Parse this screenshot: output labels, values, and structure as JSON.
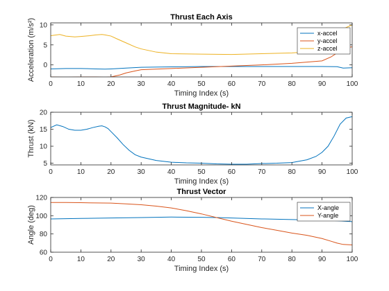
{
  "chart_data": [
    {
      "type": "line",
      "title": "Thrust Each Axis",
      "xlabel": "Timing Index (s)",
      "ylabel": "Acceleration (m/s²)",
      "xlim": [
        0,
        100
      ],
      "ylim": [
        -3,
        10.5
      ],
      "xticks": [
        0,
        10,
        20,
        30,
        40,
        50,
        60,
        70,
        80,
        90,
        100
      ],
      "yticks": [
        -5,
        0,
        5,
        10
      ],
      "legend": "top-right",
      "grid": false,
      "series": [
        {
          "name": "x-accel",
          "color": "#0072BD",
          "x": [
            0,
            5,
            10,
            15,
            18,
            20,
            25,
            30,
            40,
            50,
            60,
            70,
            80,
            90,
            95,
            97,
            100
          ],
          "y": [
            -1.0,
            -0.9,
            -0.9,
            -1.0,
            -1.05,
            -1.0,
            -0.8,
            -0.6,
            -0.5,
            -0.4,
            -0.4,
            -0.4,
            -0.4,
            -0.4,
            -0.45,
            -0.8,
            -0.7
          ]
        },
        {
          "name": "y-accel",
          "color": "#D95319",
          "x": [
            0,
            5,
            10,
            15,
            18,
            20,
            23,
            25,
            28,
            30,
            40,
            50,
            60,
            70,
            80,
            85,
            90,
            93,
            95,
            97,
            100
          ],
          "y": [
            -3.0,
            -3.1,
            -3.0,
            -3.0,
            -3.1,
            -3.0,
            -2.5,
            -2.0,
            -1.5,
            -1.2,
            -0.9,
            -0.6,
            -0.3,
            0.0,
            0.4,
            0.7,
            1.0,
            2.0,
            3.0,
            4.2,
            4.5
          ]
        },
        {
          "name": "z-accel",
          "color": "#EDB120",
          "x": [
            0,
            3,
            5,
            8,
            10,
            13,
            15,
            17,
            18,
            20,
            22,
            25,
            28,
            30,
            35,
            40,
            50,
            60,
            70,
            80,
            90,
            93,
            95,
            97,
            100
          ],
          "y": [
            7.3,
            7.6,
            7.2,
            7.0,
            7.1,
            7.3,
            7.5,
            7.6,
            7.5,
            7.2,
            6.5,
            5.5,
            4.5,
            4.0,
            3.2,
            2.8,
            2.7,
            2.6,
            2.8,
            3.0,
            3.5,
            4.5,
            6.0,
            9.0,
            10.0
          ]
        }
      ]
    },
    {
      "type": "line",
      "title": "Thrust Magnitude- kN",
      "xlabel": "Timing Index (s)",
      "ylabel": "Thrust (kN)",
      "xlim": [
        0,
        100
      ],
      "ylim": [
        4.5,
        20
      ],
      "xticks": [
        0,
        10,
        20,
        30,
        40,
        50,
        60,
        70,
        80,
        90,
        100
      ],
      "yticks": [
        5,
        10,
        15,
        20
      ],
      "grid": false,
      "series": [
        {
          "name": "",
          "color": "#0072BD",
          "x": [
            0,
            2,
            4,
            6,
            8,
            10,
            12,
            14,
            16,
            17,
            18,
            19,
            20,
            22,
            24,
            26,
            28,
            30,
            35,
            40,
            45,
            50,
            55,
            60,
            65,
            70,
            75,
            80,
            85,
            88,
            90,
            92,
            94,
            96,
            98,
            100
          ],
          "y": [
            15.5,
            16.3,
            15.8,
            15.0,
            14.7,
            14.7,
            15.0,
            15.5,
            15.9,
            16.0,
            15.7,
            15.2,
            14.3,
            12.5,
            10.5,
            8.8,
            7.5,
            6.8,
            5.8,
            5.3,
            5.1,
            5.0,
            4.8,
            4.7,
            4.7,
            4.9,
            5.0,
            5.2,
            6.0,
            7.0,
            8.2,
            10.0,
            13.0,
            16.5,
            18.3,
            18.7
          ]
        }
      ]
    },
    {
      "type": "line",
      "title": "Thrust Vector",
      "xlabel": "Timing Index (s)",
      "ylabel": "Angle (deg)",
      "xlim": [
        0,
        100
      ],
      "ylim": [
        60,
        120
      ],
      "xticks": [
        0,
        10,
        20,
        30,
        40,
        50,
        60,
        70,
        80,
        90,
        100
      ],
      "yticks": [
        60,
        80,
        100,
        120
      ],
      "legend": "top-right",
      "grid": false,
      "series": [
        {
          "name": "X-angle",
          "color": "#0072BD",
          "x": [
            0,
            10,
            20,
            30,
            40,
            50,
            55,
            60,
            70,
            80,
            90,
            95,
            100
          ],
          "y": [
            96.5,
            97.0,
            97.5,
            98.0,
            98.5,
            98.3,
            98.0,
            97.5,
            96.5,
            95.8,
            95.0,
            94.5,
            93.5
          ]
        },
        {
          "name": "Y-angle",
          "color": "#D95319",
          "x": [
            0,
            5,
            10,
            15,
            20,
            25,
            30,
            35,
            40,
            45,
            50,
            55,
            60,
            65,
            70,
            75,
            80,
            85,
            90,
            93,
            95,
            97,
            100
          ],
          "y": [
            114.5,
            114.5,
            114.3,
            114.0,
            113.8,
            113.0,
            112.0,
            110.5,
            108.5,
            105.5,
            102.0,
            98.0,
            94.0,
            90.5,
            87.0,
            84.0,
            81.0,
            78.5,
            75.0,
            72.0,
            70.0,
            68.5,
            68.0
          ]
        }
      ]
    }
  ]
}
